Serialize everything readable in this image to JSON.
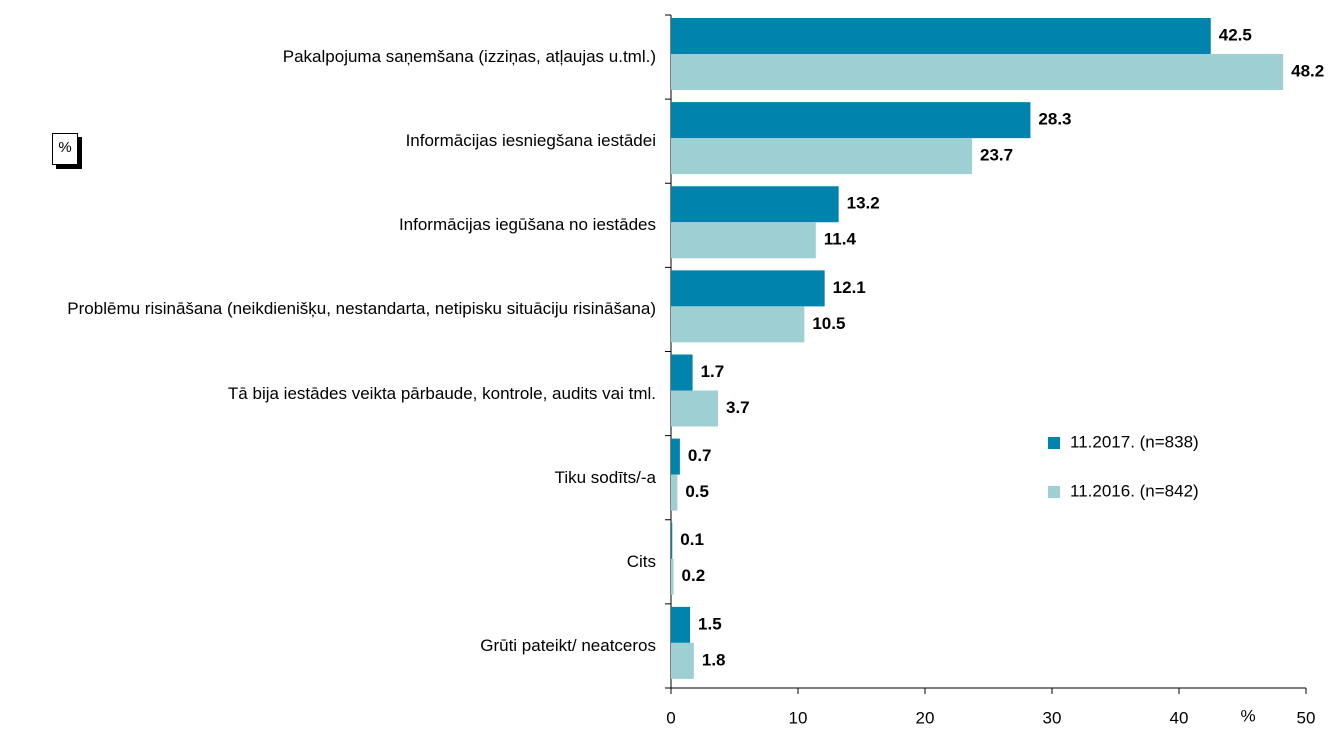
{
  "chart_data": {
    "type": "hbar",
    "unit_box": "%",
    "xlabel": "%",
    "categories": [
      "Pakalpojuma saņemšana (izziņas, atļaujas u.tml.)",
      "Informācijas iesniegšana iestādei",
      "Informācijas iegūšana no iestādes",
      "Problēmu risināšana (neikdienišķu, nestandarta, netipisku situāciju risināšana)",
      "Tā bija iestādes veikta pārbaude, kontrole, audits vai tml.",
      "Tiku sodīts/-a",
      "Cits",
      "Grūti pateikt/ neatceros"
    ],
    "series": [
      {
        "name": "11.2017. (n=838)",
        "color": "#0083ad",
        "values": [
          42.5,
          28.3,
          13.2,
          12.1,
          1.7,
          0.7,
          0.1,
          1.5
        ]
      },
      {
        "name": "11.2016. (n=842)",
        "color": "#9dcfd3",
        "values": [
          48.2,
          23.7,
          11.4,
          10.5,
          3.7,
          0.5,
          0.2,
          1.8
        ]
      }
    ],
    "xlim": [
      0,
      50
    ],
    "xticks": [
      0,
      10,
      20,
      30,
      40,
      50
    ]
  }
}
